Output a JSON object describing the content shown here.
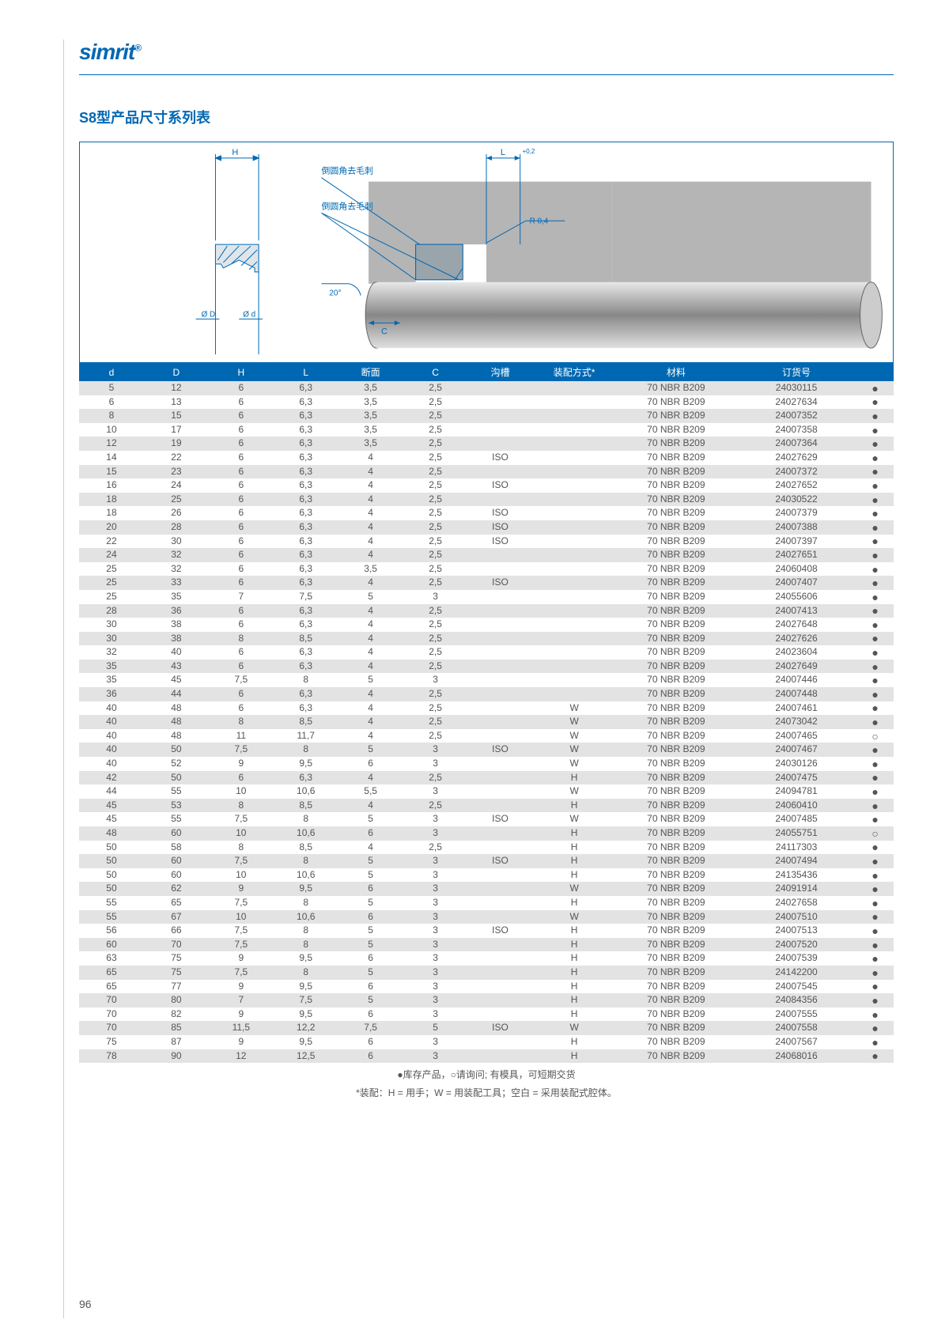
{
  "brand": "simrit",
  "brand_mark": "®",
  "title": "S8型产品尺寸系列表",
  "page_number": "96",
  "diagram_labels": {
    "H": "H",
    "L": "L",
    "deburr1": "倒圆角去毛刺",
    "deburr2": "倒圆角去毛刺",
    "angle": "20°",
    "C": "C",
    "R": "R 0,4",
    "phiD": "Ø D",
    "phid": "Ø d",
    "tol": "+0,2"
  },
  "columns": [
    "d",
    "D",
    "H",
    "L",
    "断面",
    "C",
    "沟槽",
    "装配方式*",
    "材料",
    "订货号",
    ""
  ],
  "col_widths": [
    "7%",
    "7%",
    "7%",
    "7%",
    "7%",
    "7%",
    "7%",
    "9%",
    "13%",
    "13%",
    "4%"
  ],
  "footnote1": "●库存产品，○请询问; 有模具，可短期交货",
  "footnote2": "*装配：H = 用手；W = 用装配工具；空白 = 采用装配式腔体。",
  "rows": [
    {
      "d": "5",
      "D": "12",
      "H": "6",
      "L": "6,3",
      "cs": "3,5",
      "C": "2,5",
      "g": "",
      "a": "",
      "m": "70 NBR B209",
      "o": "24030115",
      "s": "●"
    },
    {
      "d": "6",
      "D": "13",
      "H": "6",
      "L": "6,3",
      "cs": "3,5",
      "C": "2,5",
      "g": "",
      "a": "",
      "m": "70 NBR B209",
      "o": "24027634",
      "s": "●"
    },
    {
      "d": "8",
      "D": "15",
      "H": "6",
      "L": "6,3",
      "cs": "3,5",
      "C": "2,5",
      "g": "",
      "a": "",
      "m": "70 NBR B209",
      "o": "24007352",
      "s": "●"
    },
    {
      "d": "10",
      "D": "17",
      "H": "6",
      "L": "6,3",
      "cs": "3,5",
      "C": "2,5",
      "g": "",
      "a": "",
      "m": "70 NBR B209",
      "o": "24007358",
      "s": "●"
    },
    {
      "d": "12",
      "D": "19",
      "H": "6",
      "L": "6,3",
      "cs": "3,5",
      "C": "2,5",
      "g": "",
      "a": "",
      "m": "70 NBR B209",
      "o": "24007364",
      "s": "●"
    },
    {
      "d": "14",
      "D": "22",
      "H": "6",
      "L": "6,3",
      "cs": "4",
      "C": "2,5",
      "g": "ISO",
      "a": "",
      "m": "70 NBR B209",
      "o": "24027629",
      "s": "●"
    },
    {
      "d": "15",
      "D": "23",
      "H": "6",
      "L": "6,3",
      "cs": "4",
      "C": "2,5",
      "g": "",
      "a": "",
      "m": "70 NBR B209",
      "o": "24007372",
      "s": "●"
    },
    {
      "d": "16",
      "D": "24",
      "H": "6",
      "L": "6,3",
      "cs": "4",
      "C": "2,5",
      "g": "ISO",
      "a": "",
      "m": "70 NBR B209",
      "o": "24027652",
      "s": "●"
    },
    {
      "d": "18",
      "D": "25",
      "H": "6",
      "L": "6,3",
      "cs": "4",
      "C": "2,5",
      "g": "",
      "a": "",
      "m": "70 NBR B209",
      "o": "24030522",
      "s": "●"
    },
    {
      "d": "18",
      "D": "26",
      "H": "6",
      "L": "6,3",
      "cs": "4",
      "C": "2,5",
      "g": "ISO",
      "a": "",
      "m": "70 NBR B209",
      "o": "24007379",
      "s": "●"
    },
    {
      "d": "20",
      "D": "28",
      "H": "6",
      "L": "6,3",
      "cs": "4",
      "C": "2,5",
      "g": "ISO",
      "a": "",
      "m": "70 NBR B209",
      "o": "24007388",
      "s": "●"
    },
    {
      "d": "22",
      "D": "30",
      "H": "6",
      "L": "6,3",
      "cs": "4",
      "C": "2,5",
      "g": "ISO",
      "a": "",
      "m": "70 NBR B209",
      "o": "24007397",
      "s": "●"
    },
    {
      "d": "24",
      "D": "32",
      "H": "6",
      "L": "6,3",
      "cs": "4",
      "C": "2,5",
      "g": "",
      "a": "",
      "m": "70 NBR B209",
      "o": "24027651",
      "s": "●"
    },
    {
      "d": "25",
      "D": "32",
      "H": "6",
      "L": "6,3",
      "cs": "3,5",
      "C": "2,5",
      "g": "",
      "a": "",
      "m": "70 NBR B209",
      "o": "24060408",
      "s": "●"
    },
    {
      "d": "25",
      "D": "33",
      "H": "6",
      "L": "6,3",
      "cs": "4",
      "C": "2,5",
      "g": "ISO",
      "a": "",
      "m": "70 NBR B209",
      "o": "24007407",
      "s": "●"
    },
    {
      "d": "25",
      "D": "35",
      "H": "7",
      "L": "7,5",
      "cs": "5",
      "C": "3",
      "g": "",
      "a": "",
      "m": "70 NBR B209",
      "o": "24055606",
      "s": "●"
    },
    {
      "d": "28",
      "D": "36",
      "H": "6",
      "L": "6,3",
      "cs": "4",
      "C": "2,5",
      "g": "",
      "a": "",
      "m": "70 NBR B209",
      "o": "24007413",
      "s": "●"
    },
    {
      "d": "30",
      "D": "38",
      "H": "6",
      "L": "6,3",
      "cs": "4",
      "C": "2,5",
      "g": "",
      "a": "",
      "m": "70 NBR B209",
      "o": "24027648",
      "s": "●"
    },
    {
      "d": "30",
      "D": "38",
      "H": "8",
      "L": "8,5",
      "cs": "4",
      "C": "2,5",
      "g": "",
      "a": "",
      "m": "70 NBR B209",
      "o": "24027626",
      "s": "●"
    },
    {
      "d": "32",
      "D": "40",
      "H": "6",
      "L": "6,3",
      "cs": "4",
      "C": "2,5",
      "g": "",
      "a": "",
      "m": "70 NBR B209",
      "o": "24023604",
      "s": "●"
    },
    {
      "d": "35",
      "D": "43",
      "H": "6",
      "L": "6,3",
      "cs": "4",
      "C": "2,5",
      "g": "",
      "a": "",
      "m": "70 NBR B209",
      "o": "24027649",
      "s": "●"
    },
    {
      "d": "35",
      "D": "45",
      "H": "7,5",
      "L": "8",
      "cs": "5",
      "C": "3",
      "g": "",
      "a": "",
      "m": "70 NBR B209",
      "o": "24007446",
      "s": "●"
    },
    {
      "d": "36",
      "D": "44",
      "H": "6",
      "L": "6,3",
      "cs": "4",
      "C": "2,5",
      "g": "",
      "a": "",
      "m": "70 NBR B209",
      "o": "24007448",
      "s": "●"
    },
    {
      "d": "40",
      "D": "48",
      "H": "6",
      "L": "6,3",
      "cs": "4",
      "C": "2,5",
      "g": "",
      "a": "W",
      "m": "70 NBR B209",
      "o": "24007461",
      "s": "●"
    },
    {
      "d": "40",
      "D": "48",
      "H": "8",
      "L": "8,5",
      "cs": "4",
      "C": "2,5",
      "g": "",
      "a": "W",
      "m": "70 NBR B209",
      "o": "24073042",
      "s": "●"
    },
    {
      "d": "40",
      "D": "48",
      "H": "11",
      "L": "11,7",
      "cs": "4",
      "C": "2,5",
      "g": "",
      "a": "W",
      "m": "70 NBR B209",
      "o": "24007465",
      "s": "○"
    },
    {
      "d": "40",
      "D": "50",
      "H": "7,5",
      "L": "8",
      "cs": "5",
      "C": "3",
      "g": "ISO",
      "a": "W",
      "m": "70 NBR B209",
      "o": "24007467",
      "s": "●"
    },
    {
      "d": "40",
      "D": "52",
      "H": "9",
      "L": "9,5",
      "cs": "6",
      "C": "3",
      "g": "",
      "a": "W",
      "m": "70 NBR B209",
      "o": "24030126",
      "s": "●"
    },
    {
      "d": "42",
      "D": "50",
      "H": "6",
      "L": "6,3",
      "cs": "4",
      "C": "2,5",
      "g": "",
      "a": "H",
      "m": "70 NBR B209",
      "o": "24007475",
      "s": "●"
    },
    {
      "d": "44",
      "D": "55",
      "H": "10",
      "L": "10,6",
      "cs": "5,5",
      "C": "3",
      "g": "",
      "a": "W",
      "m": "70 NBR B209",
      "o": "24094781",
      "s": "●"
    },
    {
      "d": "45",
      "D": "53",
      "H": "8",
      "L": "8,5",
      "cs": "4",
      "C": "2,5",
      "g": "",
      "a": "H",
      "m": "70 NBR B209",
      "o": "24060410",
      "s": "●"
    },
    {
      "d": "45",
      "D": "55",
      "H": "7,5",
      "L": "8",
      "cs": "5",
      "C": "3",
      "g": "ISO",
      "a": "W",
      "m": "70 NBR B209",
      "o": "24007485",
      "s": "●"
    },
    {
      "d": "48",
      "D": "60",
      "H": "10",
      "L": "10,6",
      "cs": "6",
      "C": "3",
      "g": "",
      "a": "H",
      "m": "70 NBR B209",
      "o": "24055751",
      "s": "○"
    },
    {
      "d": "50",
      "D": "58",
      "H": "8",
      "L": "8,5",
      "cs": "4",
      "C": "2,5",
      "g": "",
      "a": "H",
      "m": "70 NBR B209",
      "o": "24117303",
      "s": "●"
    },
    {
      "d": "50",
      "D": "60",
      "H": "7,5",
      "L": "8",
      "cs": "5",
      "C": "3",
      "g": "ISO",
      "a": "H",
      "m": "70 NBR B209",
      "o": "24007494",
      "s": "●"
    },
    {
      "d": "50",
      "D": "60",
      "H": "10",
      "L": "10,6",
      "cs": "5",
      "C": "3",
      "g": "",
      "a": "H",
      "m": "70 NBR B209",
      "o": "24135436",
      "s": "●"
    },
    {
      "d": "50",
      "D": "62",
      "H": "9",
      "L": "9,5",
      "cs": "6",
      "C": "3",
      "g": "",
      "a": "W",
      "m": "70 NBR B209",
      "o": "24091914",
      "s": "●"
    },
    {
      "d": "55",
      "D": "65",
      "H": "7,5",
      "L": "8",
      "cs": "5",
      "C": "3",
      "g": "",
      "a": "H",
      "m": "70 NBR B209",
      "o": "24027658",
      "s": "●"
    },
    {
      "d": "55",
      "D": "67",
      "H": "10",
      "L": "10,6",
      "cs": "6",
      "C": "3",
      "g": "",
      "a": "W",
      "m": "70 NBR B209",
      "o": "24007510",
      "s": "●"
    },
    {
      "d": "56",
      "D": "66",
      "H": "7,5",
      "L": "8",
      "cs": "5",
      "C": "3",
      "g": "ISO",
      "a": "H",
      "m": "70 NBR B209",
      "o": "24007513",
      "s": "●"
    },
    {
      "d": "60",
      "D": "70",
      "H": "7,5",
      "L": "8",
      "cs": "5",
      "C": "3",
      "g": "",
      "a": "H",
      "m": "70 NBR B209",
      "o": "24007520",
      "s": "●"
    },
    {
      "d": "63",
      "D": "75",
      "H": "9",
      "L": "9,5",
      "cs": "6",
      "C": "3",
      "g": "",
      "a": "H",
      "m": "70 NBR B209",
      "o": "24007539",
      "s": "●"
    },
    {
      "d": "65",
      "D": "75",
      "H": "7,5",
      "L": "8",
      "cs": "5",
      "C": "3",
      "g": "",
      "a": "H",
      "m": "70 NBR B209",
      "o": "24142200",
      "s": "●"
    },
    {
      "d": "65",
      "D": "77",
      "H": "9",
      "L": "9,5",
      "cs": "6",
      "C": "3",
      "g": "",
      "a": "H",
      "m": "70 NBR B209",
      "o": "24007545",
      "s": "●"
    },
    {
      "d": "70",
      "D": "80",
      "H": "7",
      "L": "7,5",
      "cs": "5",
      "C": "3",
      "g": "",
      "a": "H",
      "m": "70 NBR B209",
      "o": "24084356",
      "s": "●"
    },
    {
      "d": "70",
      "D": "82",
      "H": "9",
      "L": "9,5",
      "cs": "6",
      "C": "3",
      "g": "",
      "a": "H",
      "m": "70 NBR B209",
      "o": "24007555",
      "s": "●"
    },
    {
      "d": "70",
      "D": "85",
      "H": "11,5",
      "L": "12,2",
      "cs": "7,5",
      "C": "5",
      "g": "ISO",
      "a": "W",
      "m": "70 NBR B209",
      "o": "24007558",
      "s": "●"
    },
    {
      "d": "75",
      "D": "87",
      "H": "9",
      "L": "9,5",
      "cs": "6",
      "C": "3",
      "g": "",
      "a": "H",
      "m": "70 NBR B209",
      "o": "24007567",
      "s": "●"
    },
    {
      "d": "78",
      "D": "90",
      "H": "12",
      "L": "12,5",
      "cs": "6",
      "C": "3",
      "g": "",
      "a": "H",
      "m": "70 NBR B209",
      "o": "24068016",
      "s": "●"
    }
  ]
}
